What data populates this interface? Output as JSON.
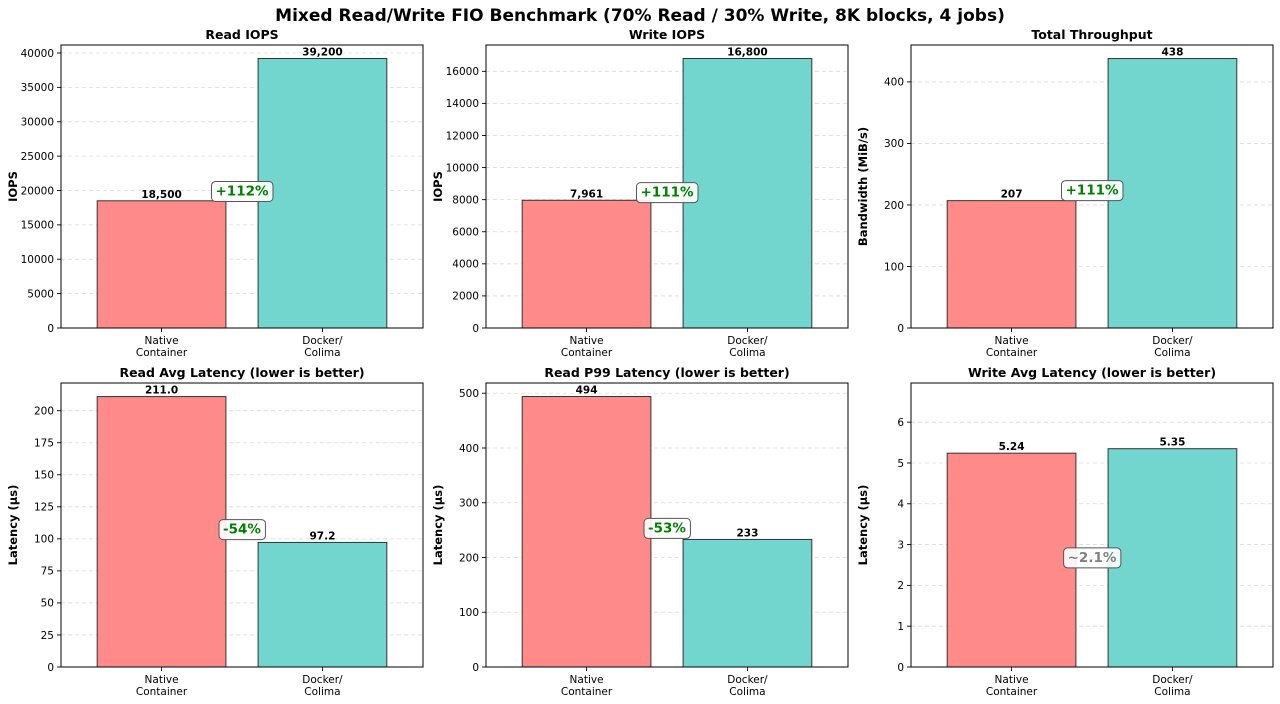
{
  "figure": {
    "title": "Mixed Read/Write FIO Benchmark (70% Read / 30% Write, 8K blocks, 4 jobs)"
  },
  "colors": {
    "native": "#FF8A8A",
    "docker": "#72D6CE",
    "edge": "#333333",
    "improve_text": "#008000",
    "neutral_text": "#808080"
  },
  "chart_data": [
    {
      "type": "bar",
      "title": "Read IOPS",
      "ylabel": "IOPS",
      "categories": [
        "Native\nContainer",
        "Docker/\nColima"
      ],
      "values": [
        18500,
        39200
      ],
      "value_labels": [
        "18,500",
        "39,200"
      ],
      "ylim": [
        0,
        41160
      ],
      "yticks": [
        0,
        5000,
        10000,
        15000,
        20000,
        25000,
        30000,
        35000,
        40000
      ],
      "grid": "horizontal dashed",
      "annotation": {
        "text": "+112%",
        "y": 20000,
        "color": "improve"
      }
    },
    {
      "type": "bar",
      "title": "Write IOPS",
      "ylabel": "IOPS",
      "categories": [
        "Native\nContainer",
        "Docker/\nColima"
      ],
      "values": [
        7961,
        16800
      ],
      "value_labels": [
        "7,961",
        "16,800"
      ],
      "ylim": [
        0,
        17640
      ],
      "yticks": [
        0,
        2000,
        4000,
        6000,
        8000,
        10000,
        12000,
        14000,
        16000
      ],
      "grid": "horizontal dashed",
      "annotation": {
        "text": "+111%",
        "y": 8500,
        "color": "improve"
      }
    },
    {
      "type": "bar",
      "title": "Total Throughput",
      "ylabel": "Bandwidth (MiB/s)",
      "categories": [
        "Native\nContainer",
        "Docker/\nColima"
      ],
      "values": [
        207,
        438
      ],
      "value_labels": [
        "207",
        "438"
      ],
      "ylim": [
        0,
        460
      ],
      "yticks": [
        0,
        100,
        200,
        300,
        400
      ],
      "grid": "horizontal dashed",
      "annotation": {
        "text": "+111%",
        "y": 225,
        "color": "improve"
      }
    },
    {
      "type": "bar",
      "title": "Read Avg Latency (lower is better)",
      "ylabel": "Latency (μs)",
      "categories": [
        "Native\nContainer",
        "Docker/\nColima"
      ],
      "values": [
        211.0,
        97.2
      ],
      "value_labels": [
        "211.0",
        "97.2"
      ],
      "ylim": [
        0,
        221.6
      ],
      "yticks": [
        0,
        25,
        50,
        75,
        100,
        125,
        150,
        175,
        200
      ],
      "grid": "horizontal dashed",
      "annotation": {
        "text": "-54%",
        "y": 108,
        "color": "improve"
      }
    },
    {
      "type": "bar",
      "title": "Read P99 Latency (lower is better)",
      "ylabel": "Latency (μs)",
      "categories": [
        "Native\nContainer",
        "Docker/\nColima"
      ],
      "values": [
        494,
        233
      ],
      "value_labels": [
        "494",
        "233"
      ],
      "ylim": [
        0,
        518.7
      ],
      "yticks": [
        0,
        100,
        200,
        300,
        400,
        500
      ],
      "grid": "horizontal dashed",
      "annotation": {
        "text": "-53%",
        "y": 255,
        "color": "improve"
      }
    },
    {
      "type": "bar",
      "title": "Write Avg Latency (lower is better)",
      "ylabel": "Latency (μs)",
      "categories": [
        "Native\nContainer",
        "Docker/\nColima"
      ],
      "values": [
        5.24,
        5.35
      ],
      "value_labels": [
        "5.24",
        "5.35"
      ],
      "ylim": [
        0,
        6.96
      ],
      "yticks": [
        0,
        1,
        2,
        3,
        4,
        5,
        6
      ],
      "grid": "horizontal dashed",
      "annotation": {
        "text": "~2.1%",
        "y": 2.7,
        "color": "neutral"
      }
    }
  ]
}
